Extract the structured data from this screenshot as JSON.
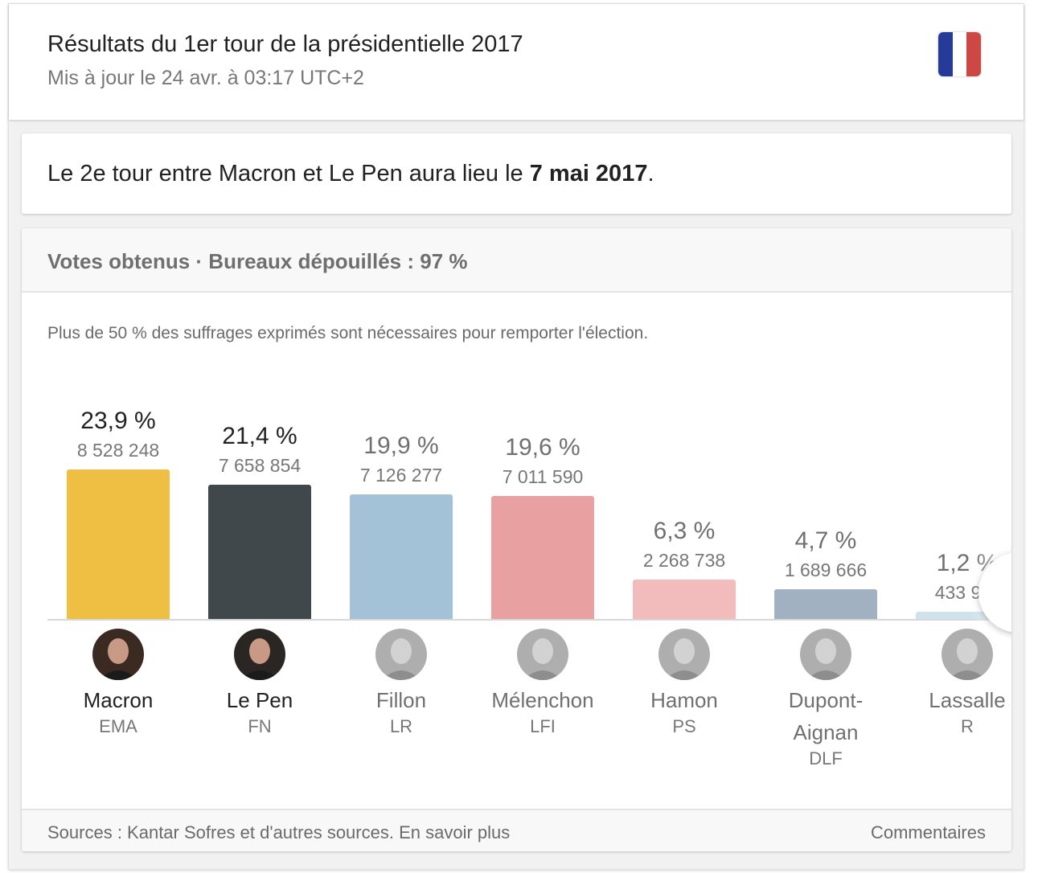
{
  "header": {
    "title": "Résultats du 1er tour de la présidentielle 2017",
    "updated": "Mis à jour le 24 avr. à 03:17 UTC+2",
    "flag_icon": "france-flag-icon",
    "flag_colors": [
      "#263a99",
      "#ffffff",
      "#cd4745"
    ]
  },
  "announcement": {
    "prefix": "Le 2e tour entre Macron et Le Pen aura lieu le ",
    "date": "7 mai 2017",
    "suffix": "."
  },
  "votes": {
    "header": "Votes obtenus · Bureaux dépouillés : 97 %",
    "note": "Plus de 50 % des suffrages exprimés sont nécessaires pour remporter l'élection.",
    "next_icon": "chevron-right-icon"
  },
  "chart_data": {
    "type": "bar",
    "title": "Votes obtenus · Bureaux dépouillés : 97 %",
    "xlabel": "",
    "ylabel": "",
    "ylim": [
      0,
      25
    ],
    "grid": false,
    "categories": [
      "Macron",
      "Le Pen",
      "Fillon",
      "Mélenchon",
      "Hamon",
      "Dupont-Aignan",
      "Lassalle"
    ],
    "parties": [
      "EMA",
      "FN",
      "LR",
      "LFI",
      "PS",
      "DLF",
      "R"
    ],
    "values": [
      23.9,
      21.4,
      19.9,
      19.6,
      6.3,
      4.7,
      1.2
    ],
    "percent_labels": [
      "23,9 %",
      "21,4 %",
      "19,9 %",
      "19,6 %",
      "6,3 %",
      "4,7 %",
      "1,2 %"
    ],
    "votes": [
      "8 528 248",
      "7 658 854",
      "7 126 277",
      "7 011 590",
      "2 268 738",
      "1 689 666",
      "433 9…"
    ],
    "colors": [
      "#eebf43",
      "#41484b",
      "#a3c2d8",
      "#e8a0a1",
      "#f2bbbc",
      "#a1b1c1",
      "#cfe2ec"
    ],
    "qualified": [
      true,
      true,
      false,
      false,
      false,
      false,
      false
    ]
  },
  "candidates": [
    {
      "name": "Macron",
      "party": "EMA",
      "pct": "23,9 %",
      "votes": "8 528 248",
      "avatar": "macron-portrait"
    },
    {
      "name": "Le Pen",
      "party": "FN",
      "pct": "21,4 %",
      "votes": "7 658 854",
      "avatar": "le-pen-portrait"
    },
    {
      "name": "Fillon",
      "party": "LR",
      "pct": "19,9 %",
      "votes": "7 126 277",
      "avatar": "fillon-portrait"
    },
    {
      "name": "Mélenchon",
      "party": "LFI",
      "pct": "19,6 %",
      "votes": "7 011 590",
      "avatar": "melenchon-portrait"
    },
    {
      "name": "Hamon",
      "party": "PS",
      "pct": "6,3 %",
      "votes": "2 268 738",
      "avatar": "hamon-portrait"
    },
    {
      "name": "Dupont-Aignan",
      "party": "DLF",
      "pct": "4,7 %",
      "votes": "1 689 666",
      "avatar": "dupont-aignan-portrait"
    },
    {
      "name": "Lassalle",
      "party": "R",
      "pct": "1,2 %",
      "votes": "433 9…",
      "avatar": "lassalle-portrait"
    }
  ],
  "footer": {
    "sources": "Sources : Kantar Sofres et d'autres sources. En savoir plus",
    "feedback": "Commentaires"
  }
}
